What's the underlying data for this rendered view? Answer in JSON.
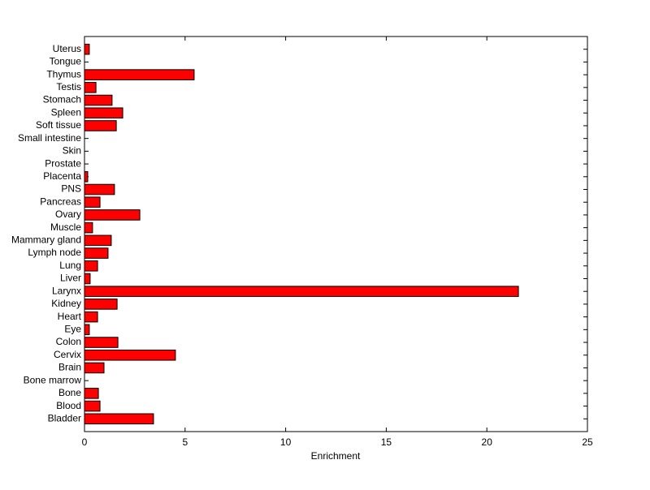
{
  "chart_data": {
    "type": "barh",
    "xlabel": "Enrichment",
    "categories": [
      "Bladder",
      "Blood",
      "Bone",
      "Bone marrow",
      "Brain",
      "Cervix",
      "Colon",
      "Eye",
      "Heart",
      "Kidney",
      "Larynx",
      "Liver",
      "Lung",
      "Lymph node",
      "Mammary gland",
      "Muscle",
      "Ovary",
      "Pancreas",
      "PNS",
      "Placenta",
      "Prostate",
      "Skin",
      "Small intestine",
      "Soft tissue",
      "Spleen",
      "Stomach",
      "Testis",
      "Thymus",
      "Tongue",
      "Uterus"
    ],
    "values": [
      3.43,
      0.77,
      0.69,
      0,
      0.97,
      4.52,
      1.66,
      0.24,
      0.65,
      1.62,
      21.57,
      0.28,
      0.65,
      1.17,
      1.33,
      0.4,
      2.75,
      0.77,
      1.49,
      0.16,
      0,
      0,
      0,
      1.58,
      1.9,
      1.37,
      0.57,
      5.45,
      0,
      0.24
    ],
    "color": "#ff0000",
    "xlim": [
      0,
      25
    ],
    "xticks": [
      0,
      5,
      10,
      15,
      20,
      25
    ]
  }
}
